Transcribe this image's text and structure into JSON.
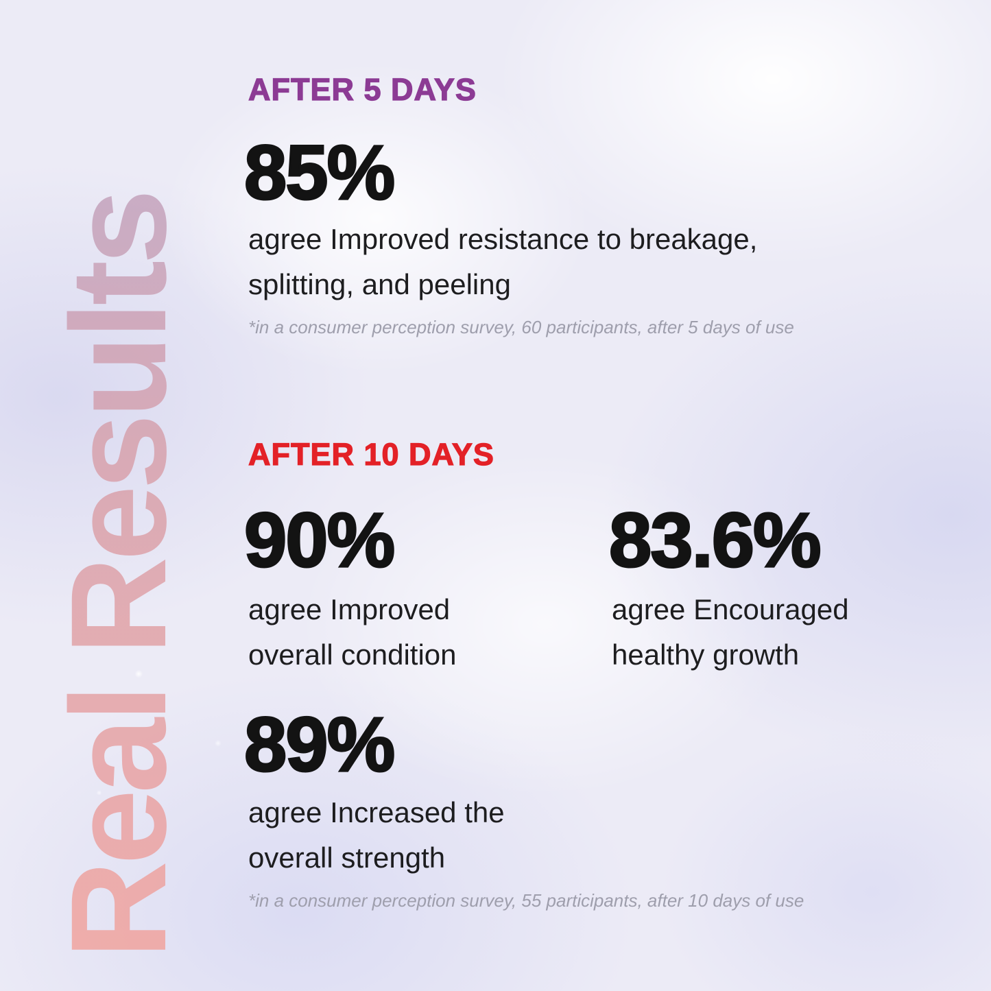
{
  "vertical_title": "Real Results",
  "sections": {
    "after5": {
      "label": "AFTER 5 DAYS",
      "stat": {
        "value": "85%",
        "desc_lines": [
          "agree Improved resistance to breakage,",
          "splitting, and peeling"
        ]
      },
      "footnote": "*in a consumer perception survey, 60 participants, after 5 days of use"
    },
    "after10": {
      "label": "AFTER 10 DAYS",
      "stats": [
        {
          "value": "90%",
          "desc_lines": [
            "agree Improved",
            "overall condition"
          ]
        },
        {
          "value": "83.6%",
          "desc_lines": [
            "agree Encouraged",
            "healthy growth"
          ]
        },
        {
          "value": "89%",
          "desc_lines": [
            "agree Increased the",
            "overall strength"
          ]
        }
      ],
      "footnote": "*in a consumer perception survey, 55 participants, after 10 days of use"
    }
  },
  "colors": {
    "background": "#ecebf6",
    "after5_label": "#8c3b94",
    "after10_label": "#e32127",
    "stat_text": "#131313",
    "body_text": "#1d1d1f",
    "footnote": "#9e9eac",
    "title_gradient_top": "#b7a0c3",
    "title_gradient_mid": "#d89fa9",
    "title_gradient_bottom": "#f2a19b"
  }
}
